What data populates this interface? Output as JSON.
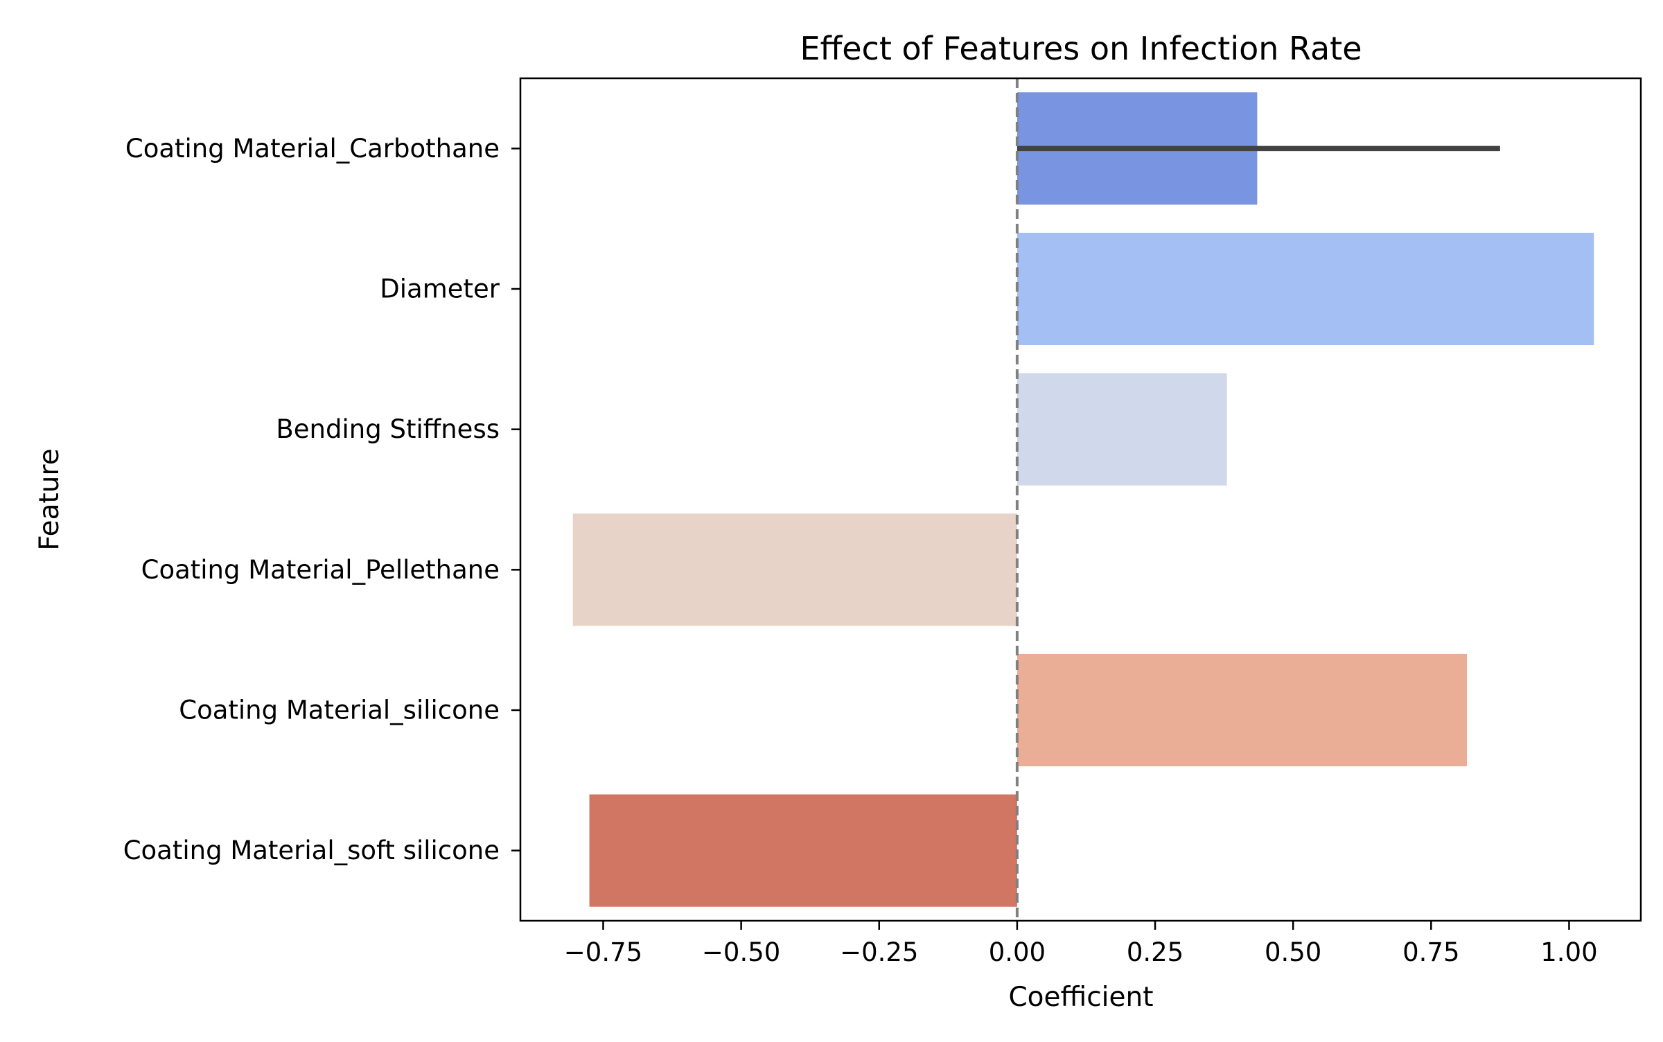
{
  "chart_data": {
    "type": "bar",
    "orientation": "horizontal",
    "title": "Effect of Features on Infection Rate",
    "xlabel": "Coefficient",
    "ylabel": "Feature",
    "categories": [
      "Coating Material_Carbothane",
      "Diameter",
      "Bending Stiffness",
      "Coating Material_Pellethane",
      "Coating Material_silicone",
      "Coating Material_soft silicone"
    ],
    "values": [
      0.435,
      1.045,
      0.38,
      -0.805,
      0.815,
      -0.775
    ],
    "error_bars": [
      {
        "category": "Coating Material_Carbothane",
        "low": 0.0,
        "high": 0.875
      }
    ],
    "colors": [
      "#7994e0",
      "#a4bff4",
      "#cfd9eb",
      "#e8d3c9",
      "#eaae96",
      "#d17663"
    ],
    "xlim": [
      -0.9,
      1.13
    ],
    "xticks": [
      -0.75,
      -0.5,
      -0.25,
      0.0,
      0.25,
      0.5,
      0.75,
      1.0
    ],
    "xtick_labels": [
      "−0.75",
      "−0.50",
      "−0.25",
      "0.00",
      "0.25",
      "0.50",
      "0.75",
      "1.00"
    ],
    "reference_line": {
      "x": 0.0,
      "style": "dashed",
      "color": "#808080"
    },
    "grid": false,
    "legend": "none"
  }
}
